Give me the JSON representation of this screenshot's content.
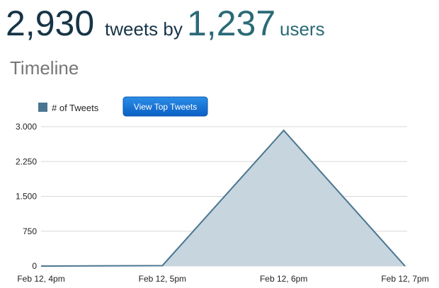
{
  "header": {
    "tweets_count": "2,930",
    "tweets_text": "tweets by",
    "users_count": "1,237",
    "users_text": "users"
  },
  "section_title": "Timeline",
  "button": "View Top Tweets",
  "chart_data": {
    "type": "area",
    "categories": [
      "Feb 12, 4pm",
      "Feb 12, 5pm",
      "Feb 12, 6pm",
      "Feb 12, 7pm"
    ],
    "series": [
      {
        "name": "# of Tweets",
        "color": "#4a7590",
        "fill": "#c6d5de",
        "values": [
          0,
          10,
          2920,
          0
        ]
      }
    ],
    "ylim": [
      0,
      3000
    ],
    "yticks": [
      0,
      750,
      {
        "value": 1500,
        "label": "1.500"
      },
      {
        "value": 2250,
        "label": "2.250"
      },
      {
        "value": 3000,
        "label": "3.000"
      }
    ],
    "grid": true
  }
}
